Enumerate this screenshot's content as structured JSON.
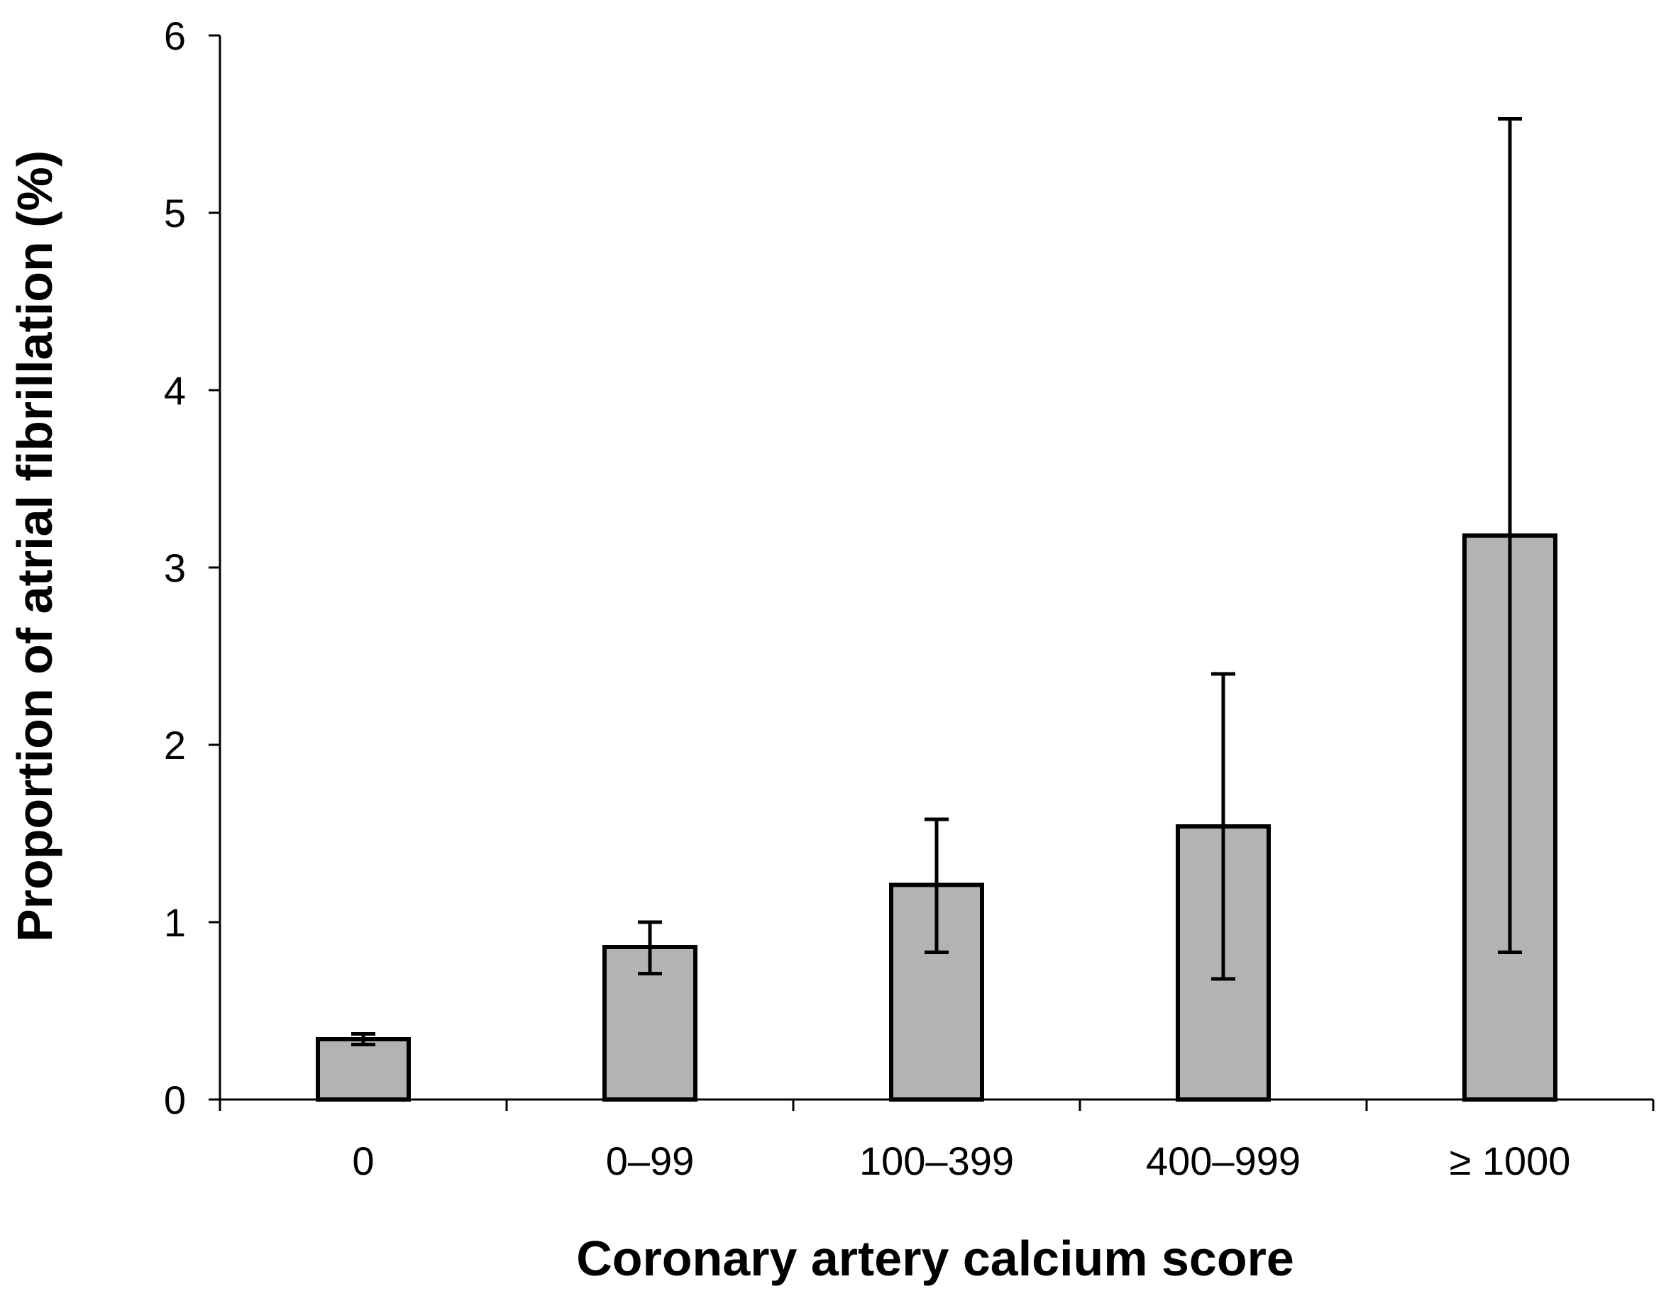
{
  "chart_data": {
    "type": "bar",
    "title": "",
    "xlabel": "Coronary artery calcium score",
    "ylabel": "Proportion of atrial fibrillation (%)",
    "categories": [
      "0",
      "0–99",
      "100–399",
      "400–999",
      "≥ 1000"
    ],
    "values": [
      0.34,
      0.86,
      1.21,
      1.54,
      3.18
    ],
    "error_low": [
      0.31,
      0.71,
      0.83,
      0.68,
      0.83
    ],
    "error_high": [
      0.37,
      1.0,
      1.58,
      2.4,
      5.53
    ],
    "ylim": [
      0,
      6
    ],
    "yticks": [
      0,
      1,
      2,
      3,
      4,
      5,
      6
    ],
    "grid": false,
    "legend": "none",
    "colors": {
      "bar_fill": "#b3b3b3",
      "bar_stroke": "#000000"
    }
  }
}
